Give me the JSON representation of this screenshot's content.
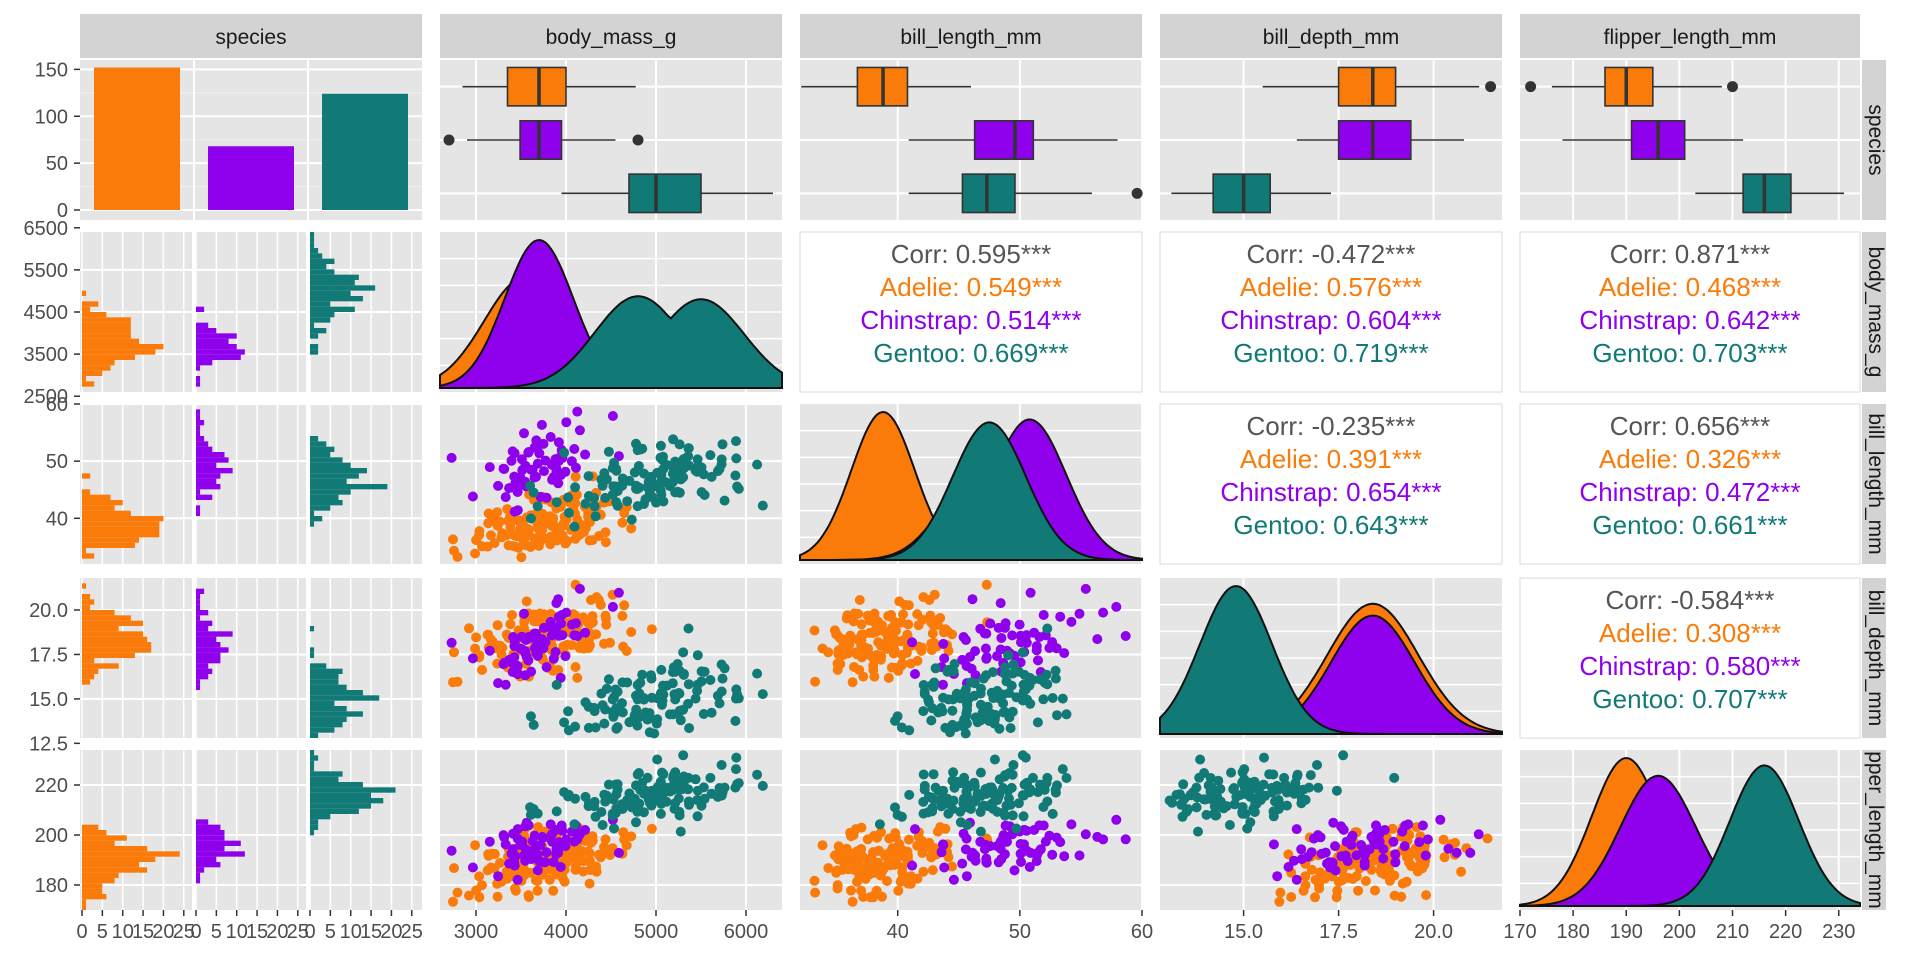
{
  "figure": {
    "kind": "ggpairs scatterplot matrix",
    "panel_background": "#e5e5e5",
    "strip_background": "#d3d3d3",
    "grid_color": "#ffffff",
    "variables": [
      "species",
      "body_mass_g",
      "bill_length_mm",
      "bill_depth_mm",
      "flipper_length_mm"
    ],
    "row_strip_labels": [
      "species",
      "body_mass_g",
      "bill_length_mm",
      "bill_depth_mm",
      "pper_length_mm"
    ]
  },
  "colors": {
    "Adelie": "#fa7b0a",
    "Chinstrap": "#8f00ec",
    "Gentoo": "#117a76",
    "overall": "#555555"
  },
  "chart_data": [
    {
      "type": "bar",
      "panel": "species x species",
      "categories": [
        "Adelie",
        "Chinstrap",
        "Gentoo"
      ],
      "values": [
        152,
        68,
        124
      ],
      "ylim": [
        0,
        160
      ],
      "yticks": [
        0,
        50,
        100,
        150
      ]
    },
    {
      "type": "boxplot",
      "panel": "species x body_mass_g",
      "xlim": [
        2600,
        6400
      ],
      "series": [
        {
          "name": "Adelie",
          "whisker_low": 2850,
          "q1": 3350,
          "median": 3700,
          "q3": 4000,
          "whisker_high": 4775,
          "outliers": []
        },
        {
          "name": "Chinstrap",
          "whisker_low": 2900,
          "q1": 3490,
          "median": 3700,
          "q3": 3950,
          "whisker_high": 4550,
          "outliers": [
            2700,
            4800
          ]
        },
        {
          "name": "Gentoo",
          "whisker_low": 3950,
          "q1": 4700,
          "median": 5000,
          "q3": 5500,
          "whisker_high": 6300,
          "outliers": []
        }
      ]
    },
    {
      "type": "boxplot",
      "panel": "species x bill_length_mm",
      "xlim": [
        32,
        60
      ],
      "series": [
        {
          "name": "Adelie",
          "whisker_low": 32.1,
          "q1": 36.7,
          "median": 38.8,
          "q3": 40.8,
          "whisker_high": 46.0,
          "outliers": []
        },
        {
          "name": "Chinstrap",
          "whisker_low": 40.9,
          "q1": 46.3,
          "median": 49.6,
          "q3": 51.1,
          "whisker_high": 58.0,
          "outliers": []
        },
        {
          "name": "Gentoo",
          "whisker_low": 40.9,
          "q1": 45.3,
          "median": 47.3,
          "q3": 49.6,
          "whisker_high": 55.9,
          "outliers": [
            59.6
          ]
        }
      ]
    },
    {
      "type": "boxplot",
      "panel": "species x bill_depth_mm",
      "xlim": [
        12.8,
        21.8
      ],
      "series": [
        {
          "name": "Adelie",
          "whisker_low": 15.5,
          "q1": 17.5,
          "median": 18.4,
          "q3": 19.0,
          "whisker_high": 21.2,
          "outliers": [
            21.5
          ]
        },
        {
          "name": "Chinstrap",
          "whisker_low": 16.4,
          "q1": 17.5,
          "median": 18.4,
          "q3": 19.4,
          "whisker_high": 20.8,
          "outliers": []
        },
        {
          "name": "Gentoo",
          "whisker_low": 13.1,
          "q1": 14.2,
          "median": 15.0,
          "q3": 15.7,
          "whisker_high": 17.3,
          "outliers": []
        }
      ]
    },
    {
      "type": "boxplot",
      "panel": "species x flipper_length_mm",
      "xlim": [
        170,
        234
      ],
      "series": [
        {
          "name": "Adelie",
          "whisker_low": 176,
          "q1": 186,
          "median": 190,
          "q3": 195,
          "whisker_high": 208,
          "outliers": [
            172,
            210
          ]
        },
        {
          "name": "Chinstrap",
          "whisker_low": 178,
          "q1": 191,
          "median": 196,
          "q3": 201,
          "whisker_high": 212,
          "outliers": []
        },
        {
          "name": "Gentoo",
          "whisker_low": 203,
          "q1": 212,
          "median": 216,
          "q3": 221,
          "whisker_high": 231,
          "outliers": []
        }
      ]
    },
    {
      "type": "table",
      "panel": "correlation panels (upper triangle)",
      "cells": [
        {
          "pair": "body_mass_g x bill_length_mm",
          "lines": [
            "Corr: 0.595***",
            "Adelie: 0.549***",
            "Chinstrap: 0.514***",
            "Gentoo: 0.669***"
          ]
        },
        {
          "pair": "body_mass_g x bill_depth_mm",
          "lines": [
            "Corr: -0.472***",
            "Adelie: 0.576***",
            "Chinstrap: 0.604***",
            "Gentoo: 0.719***"
          ]
        },
        {
          "pair": "body_mass_g x flipper_length_mm",
          "lines": [
            "Corr: 0.871***",
            "Adelie: 0.468***",
            "Chinstrap: 0.642***",
            "Gentoo: 0.703***"
          ]
        },
        {
          "pair": "bill_length_mm x bill_depth_mm",
          "lines": [
            "Corr: -0.235***",
            "Adelie: 0.391***",
            "Chinstrap: 0.654***",
            "Gentoo: 0.643***"
          ]
        },
        {
          "pair": "bill_length_mm x flipper_length_mm",
          "lines": [
            "Corr: 0.656***",
            "Adelie: 0.326***",
            "Chinstrap: 0.472***",
            "Gentoo: 0.661***"
          ]
        },
        {
          "pair": "bill_depth_mm x flipper_length_mm",
          "lines": [
            "Corr: -0.584***",
            "Adelie: 0.308***",
            "Chinstrap: 0.580***",
            "Gentoo: 0.707***"
          ]
        }
      ]
    },
    {
      "type": "area",
      "panel": "density diagonals",
      "densities": [
        {
          "variable": "body_mass_g",
          "xlim": [
            2600,
            6400
          ],
          "series": [
            {
              "name": "Adelie",
              "peaks": [
                [
                  3550,
                  0.75
                ]
              ],
              "sd": 458
            },
            {
              "name": "Chinstrap",
              "peaks": [
                [
                  3700,
                  1.0
                ]
              ],
              "sd": 380
            },
            {
              "name": "Gentoo",
              "peaks": [
                [
                  4800,
                  0.62
                ],
                [
                  5500,
                  0.6
                ]
              ],
              "sd": 480
            }
          ]
        },
        {
          "variable": "bill_length_mm",
          "xlim": [
            32,
            60
          ],
          "series": [
            {
              "name": "Adelie",
              "peaks": [
                [
                  38.8,
                  1.0
                ]
              ],
              "sd": 2.6
            },
            {
              "name": "Chinstrap",
              "peaks": [
                [
                  46.5,
                  0.55
                ],
                [
                  50.8,
                  0.95
                ]
              ],
              "sd": 3.0
            },
            {
              "name": "Gentoo",
              "peaks": [
                [
                  47.5,
                  0.93
                ]
              ],
              "sd": 3.0
            }
          ]
        },
        {
          "variable": "bill_depth_mm",
          "xlim": [
            12.8,
            21.8
          ],
          "series": [
            {
              "name": "Adelie",
              "peaks": [
                [
                  18.4,
                  0.88
                ]
              ],
              "sd": 1.2
            },
            {
              "name": "Chinstrap",
              "peaks": [
                [
                  18.4,
                  0.8
                ]
              ],
              "sd": 1.1
            },
            {
              "name": "Gentoo",
              "peaks": [
                [
                  14.8,
                  1.0
                ]
              ],
              "sd": 0.95
            }
          ]
        },
        {
          "variable": "flipper_length_mm",
          "xlim": [
            170,
            234
          ],
          "series": [
            {
              "name": "Adelie",
              "peaks": [
                [
                  190,
                  1.0
                ]
              ],
              "sd": 6.5
            },
            {
              "name": "Chinstrap",
              "peaks": [
                [
                  196,
                  0.88
                ]
              ],
              "sd": 7.1
            },
            {
              "name": "Gentoo",
              "peaks": [
                [
                  216,
                  0.95
                ]
              ],
              "sd": 6.5
            }
          ]
        }
      ]
    },
    {
      "type": "scatter",
      "panel": "lower triangle scatterplots",
      "series_summary": [
        {
          "name": "Adelie",
          "body_mass_g": [
            2850,
            4775
          ],
          "bill_length_mm": [
            32.1,
            46.0
          ],
          "bill_depth_mm": [
            15.5,
            21.5
          ],
          "flipper_length_mm": [
            172,
            210
          ]
        },
        {
          "name": "Chinstrap",
          "body_mass_g": [
            2700,
            4800
          ],
          "bill_length_mm": [
            40.9,
            58.0
          ],
          "bill_depth_mm": [
            16.4,
            20.8
          ],
          "flipper_length_mm": [
            178,
            212
          ]
        },
        {
          "name": "Gentoo",
          "body_mass_g": [
            3950,
            6300
          ],
          "bill_length_mm": [
            40.9,
            59.6
          ],
          "bill_depth_mm": [
            13.1,
            17.3
          ],
          "flipper_length_mm": [
            203,
            231
          ]
        }
      ]
    },
    {
      "type": "bar",
      "panel": "species-faceted histograms (first column)",
      "facet_xticks": [
        "0",
        "5",
        "10",
        "15",
        "20",
        "25"
      ]
    }
  ],
  "axes": {
    "species_y_ticks": [
      "0",
      "50",
      "100",
      "150"
    ],
    "body_mass_y_ticks": [
      "2500",
      "3500",
      "4500",
      "5500",
      "6500"
    ],
    "body_mass_x_ticks": [
      "3000",
      "4000",
      "5000",
      "6000"
    ],
    "bill_length_y_ticks": [
      "40",
      "50",
      "60"
    ],
    "bill_length_x_ticks": [
      "40",
      "50",
      "60"
    ],
    "bill_depth_y_ticks": [
      "12.5",
      "15.0",
      "17.5",
      "20.0"
    ],
    "bill_depth_x_ticks": [
      "15.0",
      "17.5",
      "20.0"
    ],
    "flipper_y_ticks": [
      "180",
      "200",
      "220"
    ],
    "flipper_x_ticks": [
      "170",
      "180",
      "190",
      "200",
      "210",
      "220",
      "230"
    ],
    "hist_x_ticks": [
      "0",
      "5",
      "10",
      "15",
      "20",
      "25"
    ]
  }
}
